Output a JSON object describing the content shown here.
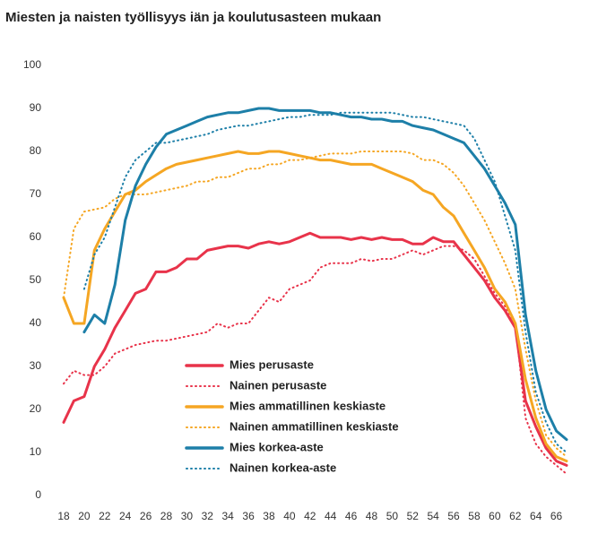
{
  "chart_data": {
    "type": "line",
    "title": "Miesten ja naisten työllisyys iän ja koulutusasteen mukaan",
    "x": [
      18,
      19,
      20,
      21,
      22,
      23,
      24,
      25,
      26,
      27,
      28,
      29,
      30,
      31,
      32,
      33,
      34,
      35,
      36,
      37,
      38,
      39,
      40,
      41,
      42,
      43,
      44,
      45,
      46,
      47,
      48,
      49,
      50,
      51,
      52,
      53,
      54,
      55,
      56,
      57,
      58,
      59,
      60,
      61,
      62,
      63,
      64,
      65,
      66,
      67
    ],
    "xlim": [
      18,
      67
    ],
    "xticks": [
      18,
      20,
      22,
      24,
      26,
      28,
      30,
      32,
      34,
      36,
      38,
      40,
      42,
      44,
      46,
      48,
      50,
      52,
      54,
      56,
      58,
      60,
      62,
      64,
      66
    ],
    "ylim": [
      0,
      100
    ],
    "yticks": [
      0,
      10,
      20,
      30,
      40,
      50,
      60,
      70,
      80,
      90,
      100
    ],
    "grid": false,
    "legend": "center",
    "series": [
      {
        "name": "Mies perusaste",
        "color": "#e8334a",
        "style": "solid",
        "values": [
          17,
          22,
          23,
          30,
          34,
          39,
          43,
          47,
          48,
          52,
          52,
          53,
          55,
          55,
          57,
          57.5,
          58,
          58,
          57.5,
          58.5,
          59,
          58.5,
          59,
          60,
          61,
          60,
          60,
          60,
          59.5,
          60,
          59.5,
          60,
          59.5,
          59.5,
          58.5,
          58.5,
          60,
          59,
          59,
          56,
          53,
          50,
          46,
          43,
          39,
          22,
          16,
          11,
          8,
          7
        ]
      },
      {
        "name": "Nainen perusaste",
        "color": "#e8334a",
        "style": "dotted",
        "values": [
          26,
          29,
          28,
          28,
          30,
          33,
          34,
          35,
          35.5,
          36,
          36,
          36.5,
          37,
          37.5,
          38,
          40,
          39,
          40,
          40,
          43,
          46,
          45,
          48,
          49,
          50,
          53,
          54,
          54,
          54,
          55,
          54.5,
          55,
          55,
          56,
          57,
          56,
          57,
          58,
          58,
          57,
          55,
          51,
          47,
          44,
          40,
          18,
          12,
          9,
          7,
          5
        ]
      },
      {
        "name": "Mies ammatillinen keskiaste",
        "color": "#f5a623",
        "style": "solid",
        "values": [
          46,
          40,
          40,
          57,
          62,
          66,
          70,
          71,
          73,
          74.5,
          76,
          77,
          77.5,
          78,
          78.5,
          79,
          79.5,
          80,
          79.5,
          79.5,
          80,
          80,
          79.5,
          79,
          78.5,
          78,
          78,
          77.5,
          77,
          77,
          77,
          76,
          75,
          74,
          73,
          71,
          70,
          67,
          65,
          61,
          57,
          53,
          48,
          45,
          40,
          27,
          18,
          12,
          9,
          8
        ]
      },
      {
        "name": "Nainen ammatillinen keskiaste",
        "color": "#f5a623",
        "style": "dotted",
        "values": [
          46,
          62,
          66,
          66.5,
          67,
          69,
          70,
          70,
          70,
          70.5,
          71,
          71.5,
          72,
          73,
          73,
          74,
          74,
          75,
          76,
          76,
          77,
          77,
          78,
          78,
          78.5,
          79,
          79.5,
          79.5,
          79.5,
          80,
          80,
          80,
          80,
          80,
          79.5,
          78,
          78,
          77,
          75,
          72,
          68,
          64,
          59,
          54,
          48,
          34,
          22,
          14,
          11,
          9
        ]
      },
      {
        "name": "Mies korkea-aste",
        "color": "#1d7fa8",
        "style": "solid",
        "values": [
          null,
          null,
          38,
          42,
          40,
          49,
          64,
          72,
          77,
          81,
          84,
          85,
          86,
          87,
          88,
          88.5,
          89,
          89,
          89.5,
          90,
          90,
          89.5,
          89.5,
          89.5,
          89.5,
          89,
          89,
          88.5,
          88,
          88,
          87.5,
          87.5,
          87,
          87,
          86,
          85.5,
          85,
          84,
          83,
          82,
          79,
          76,
          72,
          68,
          63,
          42,
          29,
          20,
          15,
          13
        ]
      },
      {
        "name": "Nainen korkea-aste",
        "color": "#1d7fa8",
        "style": "dotted",
        "values": [
          null,
          null,
          48,
          56,
          60,
          67,
          74,
          78,
          80,
          82,
          82,
          82.5,
          83,
          83.5,
          84,
          85,
          85.5,
          86,
          86,
          86.5,
          87,
          87.5,
          88,
          88,
          88.5,
          88.5,
          88.5,
          89,
          89,
          89,
          89,
          89,
          89,
          88.5,
          88,
          88,
          87.5,
          87,
          86.5,
          86,
          83,
          78,
          73,
          65,
          57,
          38,
          24,
          17,
          12,
          10
        ]
      }
    ]
  }
}
